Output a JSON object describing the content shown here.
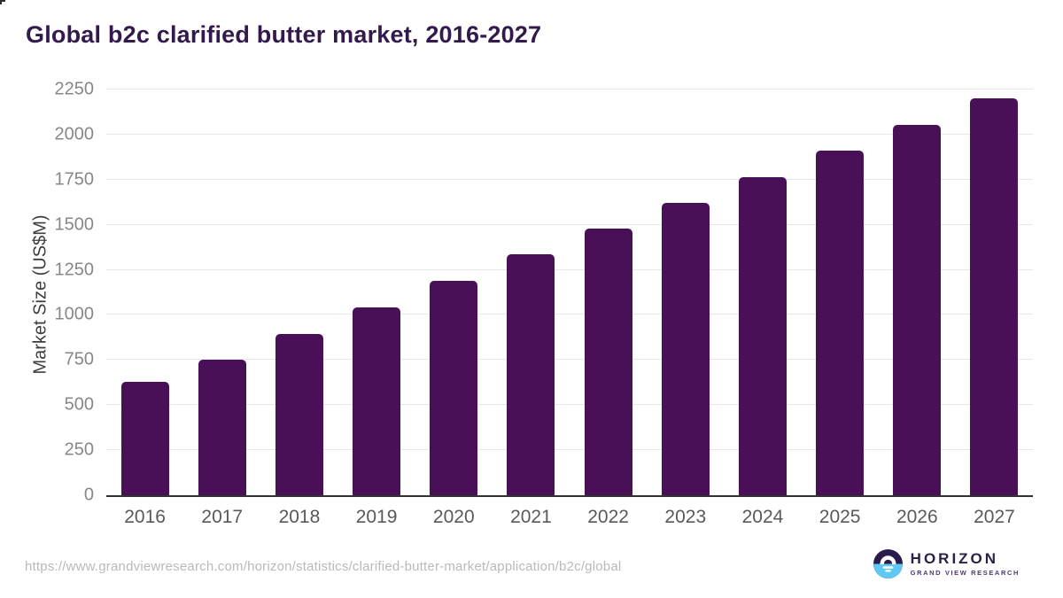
{
  "title": "Global b2c clarified butter market, 2016-2027",
  "chart_data": {
    "type": "bar",
    "categories": [
      "2016",
      "2017",
      "2018",
      "2019",
      "2020",
      "2021",
      "2022",
      "2023",
      "2024",
      "2025",
      "2026",
      "2027"
    ],
    "values": [
      630,
      750,
      895,
      1040,
      1190,
      1335,
      1480,
      1620,
      1765,
      1910,
      2055,
      2200
    ],
    "title": "Global b2c clarified butter market, 2016-2027",
    "xlabel": "",
    "ylabel": "Market Size (US$M)",
    "ylim": [
      0,
      2250
    ],
    "yticks": [
      0,
      250,
      500,
      750,
      1000,
      1250,
      1500,
      1750,
      2000,
      2250
    ],
    "grid": "horizontal",
    "legend": "none",
    "bar_color": "#4a1057"
  },
  "colors": {
    "title_text": "#321a4c",
    "bar": "#4a1057",
    "gridline": "#e8e8e8",
    "axis_line": "#333333",
    "tick_label": "#878787",
    "category_label": "#595959",
    "axis_title": "#3d3d3d",
    "url_text": "#b9b9b9",
    "logo_dark": "#2b1b4c",
    "logo_blue": "#5fc8f3"
  },
  "footer": {
    "source_url": "https://www.grandviewresearch.com/horizon/statistics/clarified-butter-market/application/b2c/global",
    "logo": {
      "name": "HORIZON",
      "subtitle": "GRAND VIEW RESEARCH",
      "icon": "horizon-sun-over-water-icon"
    }
  }
}
